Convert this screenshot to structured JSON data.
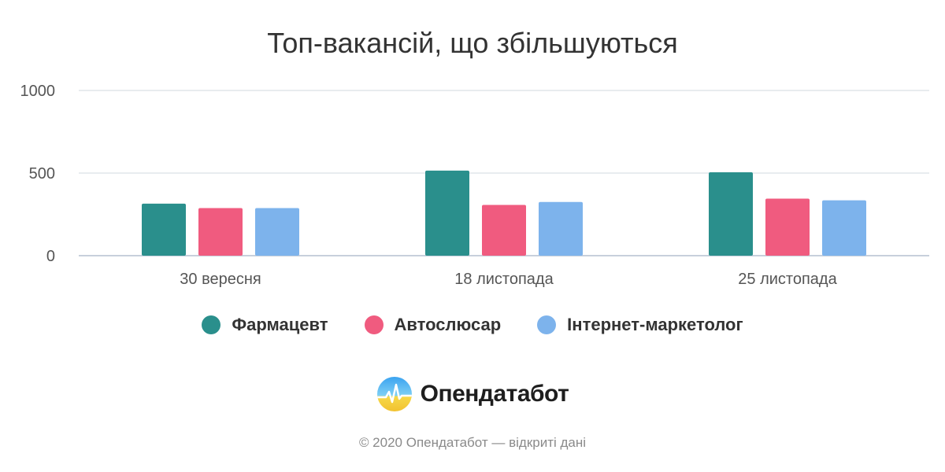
{
  "chart_data": {
    "type": "bar",
    "title": "Топ-вакансій, що збільшуються",
    "categories": [
      "30 вересня",
      "18 листопада",
      "25 листопада"
    ],
    "series": [
      {
        "name": "Фармацевт",
        "values": [
          315,
          515,
          505
        ],
        "color": "#2a8f8c"
      },
      {
        "name": "Автослюсар",
        "values": [
          288,
          307,
          345
        ],
        "color": "#f05b7f"
      },
      {
        "name": "Інтернет-маркетолог",
        "values": [
          288,
          325,
          335
        ],
        "color": "#7db3ec"
      }
    ],
    "y_ticks": [
      "0",
      "500",
      "1000"
    ],
    "ylim": [
      0,
      1000
    ],
    "grid": true,
    "legend_position": "bottom"
  },
  "brand": {
    "logo_text": "Опендатабот",
    "logo_icon": "opendatabot-logo-icon"
  },
  "footer": {
    "copyright": "© 2020 Опендатабот — відкриті дані"
  }
}
